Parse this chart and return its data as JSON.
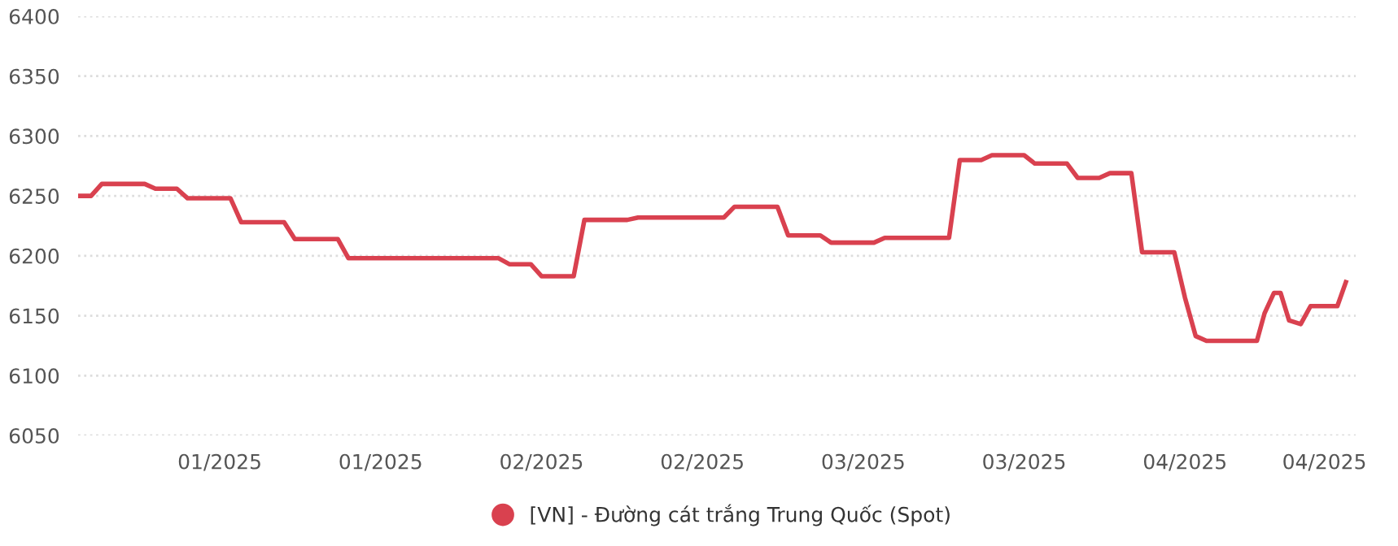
{
  "chart_data": {
    "type": "line",
    "x": [
      "2024-12-23",
      "2024-12-24",
      "2024-12-25",
      "2024-12-29",
      "2024-12-30",
      "2025-01-01",
      "2025-01-02",
      "2025-01-06",
      "2025-01-07",
      "2025-01-11",
      "2025-01-12",
      "2025-01-16",
      "2025-01-17",
      "2025-01-31",
      "2025-02-01",
      "2025-02-03",
      "2025-02-04",
      "2025-02-07",
      "2025-02-08",
      "2025-02-12",
      "2025-02-13",
      "2025-02-21",
      "2025-02-22",
      "2025-02-26",
      "2025-02-27",
      "2025-03-02",
      "2025-03-03",
      "2025-03-07",
      "2025-03-08",
      "2025-03-14",
      "2025-03-15",
      "2025-03-17",
      "2025-03-18",
      "2025-03-21",
      "2025-03-22",
      "2025-03-25",
      "2025-03-26",
      "2025-03-28",
      "2025-03-29",
      "2025-03-31",
      "2025-04-01",
      "2025-04-04",
      "2025-04-05",
      "2025-04-06",
      "2025-04-07",
      "2025-04-11T17:00",
      "2025-04-12T10:00",
      "2025-04-13T07:00",
      "2025-04-13T22:00",
      "2025-04-14T17:00",
      "2025-04-15T19:00",
      "2025-04-16T17:00",
      "2025-04-19T05:00",
      "2025-04-20"
    ],
    "series": [
      {
        "name": "[VN] - Đường cát trắng Trung Quốc (Spot)",
        "color": "#d9414f",
        "values": [
          6250,
          6250,
          6260,
          6260,
          6256,
          6256,
          6248,
          6248,
          6228,
          6228,
          6214,
          6214,
          6198,
          6198,
          6193,
          6193,
          6183,
          6183,
          6230,
          6230,
          6232,
          6232,
          6241,
          6241,
          6217,
          6217,
          6211,
          6211,
          6215,
          6215,
          6280,
          6280,
          6284,
          6284,
          6277,
          6277,
          6265,
          6265,
          6269,
          6269,
          6203,
          6203,
          6165,
          6133,
          6129,
          6129,
          6152,
          6169,
          6169,
          6146,
          6143,
          6158,
          6158,
          6178
        ]
      }
    ],
    "xlim": [
      "2024-12-22T19:00",
      "2025-04-20T22:00"
    ],
    "xticks": [
      {
        "value": "2025-01-05",
        "label": "01/2025"
      },
      {
        "value": "2025-01-20",
        "label": "01/2025"
      },
      {
        "value": "2025-02-04",
        "label": "02/2025"
      },
      {
        "value": "2025-02-19",
        "label": "02/2025"
      },
      {
        "value": "2025-03-06",
        "label": "03/2025"
      },
      {
        "value": "2025-03-21",
        "label": "03/2025"
      },
      {
        "value": "2025-04-05",
        "label": "04/2025"
      },
      {
        "value": "2025-04-18",
        "label": "04/2025"
      }
    ],
    "ylim": [
      6050,
      6400
    ],
    "yticks": [
      6050,
      6100,
      6150,
      6200,
      6250,
      6300,
      6350,
      6400
    ],
    "grid": "y",
    "legend": "bottom",
    "line_style": "solid"
  }
}
